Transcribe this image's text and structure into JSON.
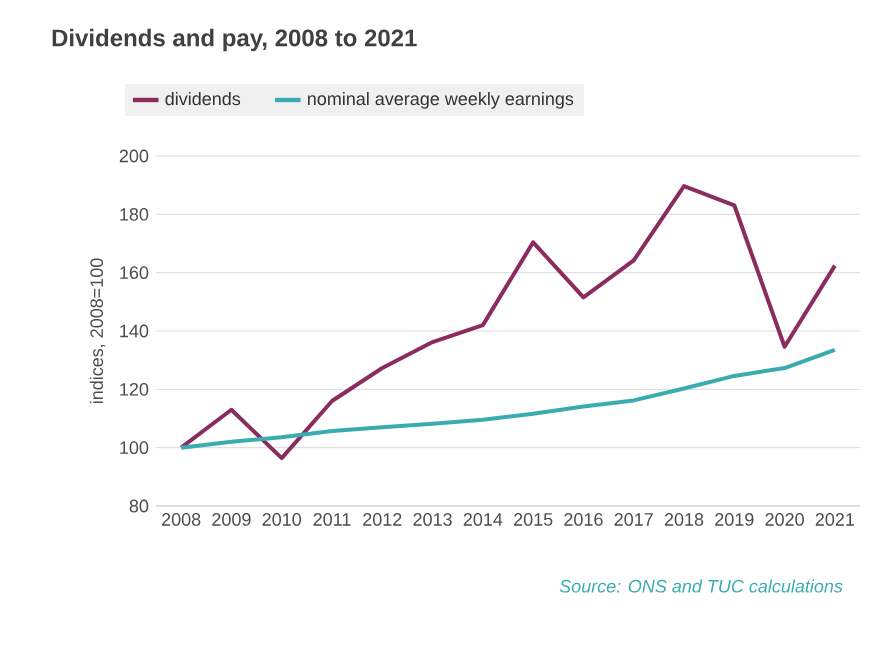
{
  "chart_data": {
    "type": "line",
    "title": "Dividends and pay, 2008 to 2021",
    "ylabel": "indices, 2008=100",
    "categories": [
      "2008",
      "2009",
      "2010",
      "2011",
      "2012",
      "2013",
      "2014",
      "2015",
      "2016",
      "2017",
      "2018",
      "2019",
      "2020",
      "2021"
    ],
    "series": [
      {
        "name": "dividends",
        "color": "#8b2c5f",
        "values": [
          100,
          113,
          96.4,
          116,
          127.3,
          136.2,
          142,
          170.4,
          151.5,
          164.2,
          189.7,
          183.1,
          134.6,
          162.4
        ]
      },
      {
        "name": "nominal average weekly earnings",
        "color": "#3aacb0",
        "values": [
          100,
          102,
          103.6,
          105.7,
          107,
          108.2,
          109.6,
          111.6,
          114.1,
          116.2,
          120.3,
          124.6,
          127.3,
          133.5
        ]
      }
    ],
    "ylim": [
      80,
      200
    ],
    "yticks": [
      80,
      100,
      120,
      140,
      160,
      180,
      200
    ],
    "grid": "y",
    "legend": "top",
    "marker": "none",
    "line_style": "solid",
    "annotations": [
      "Source: ONS and TUC calculations"
    ]
  }
}
